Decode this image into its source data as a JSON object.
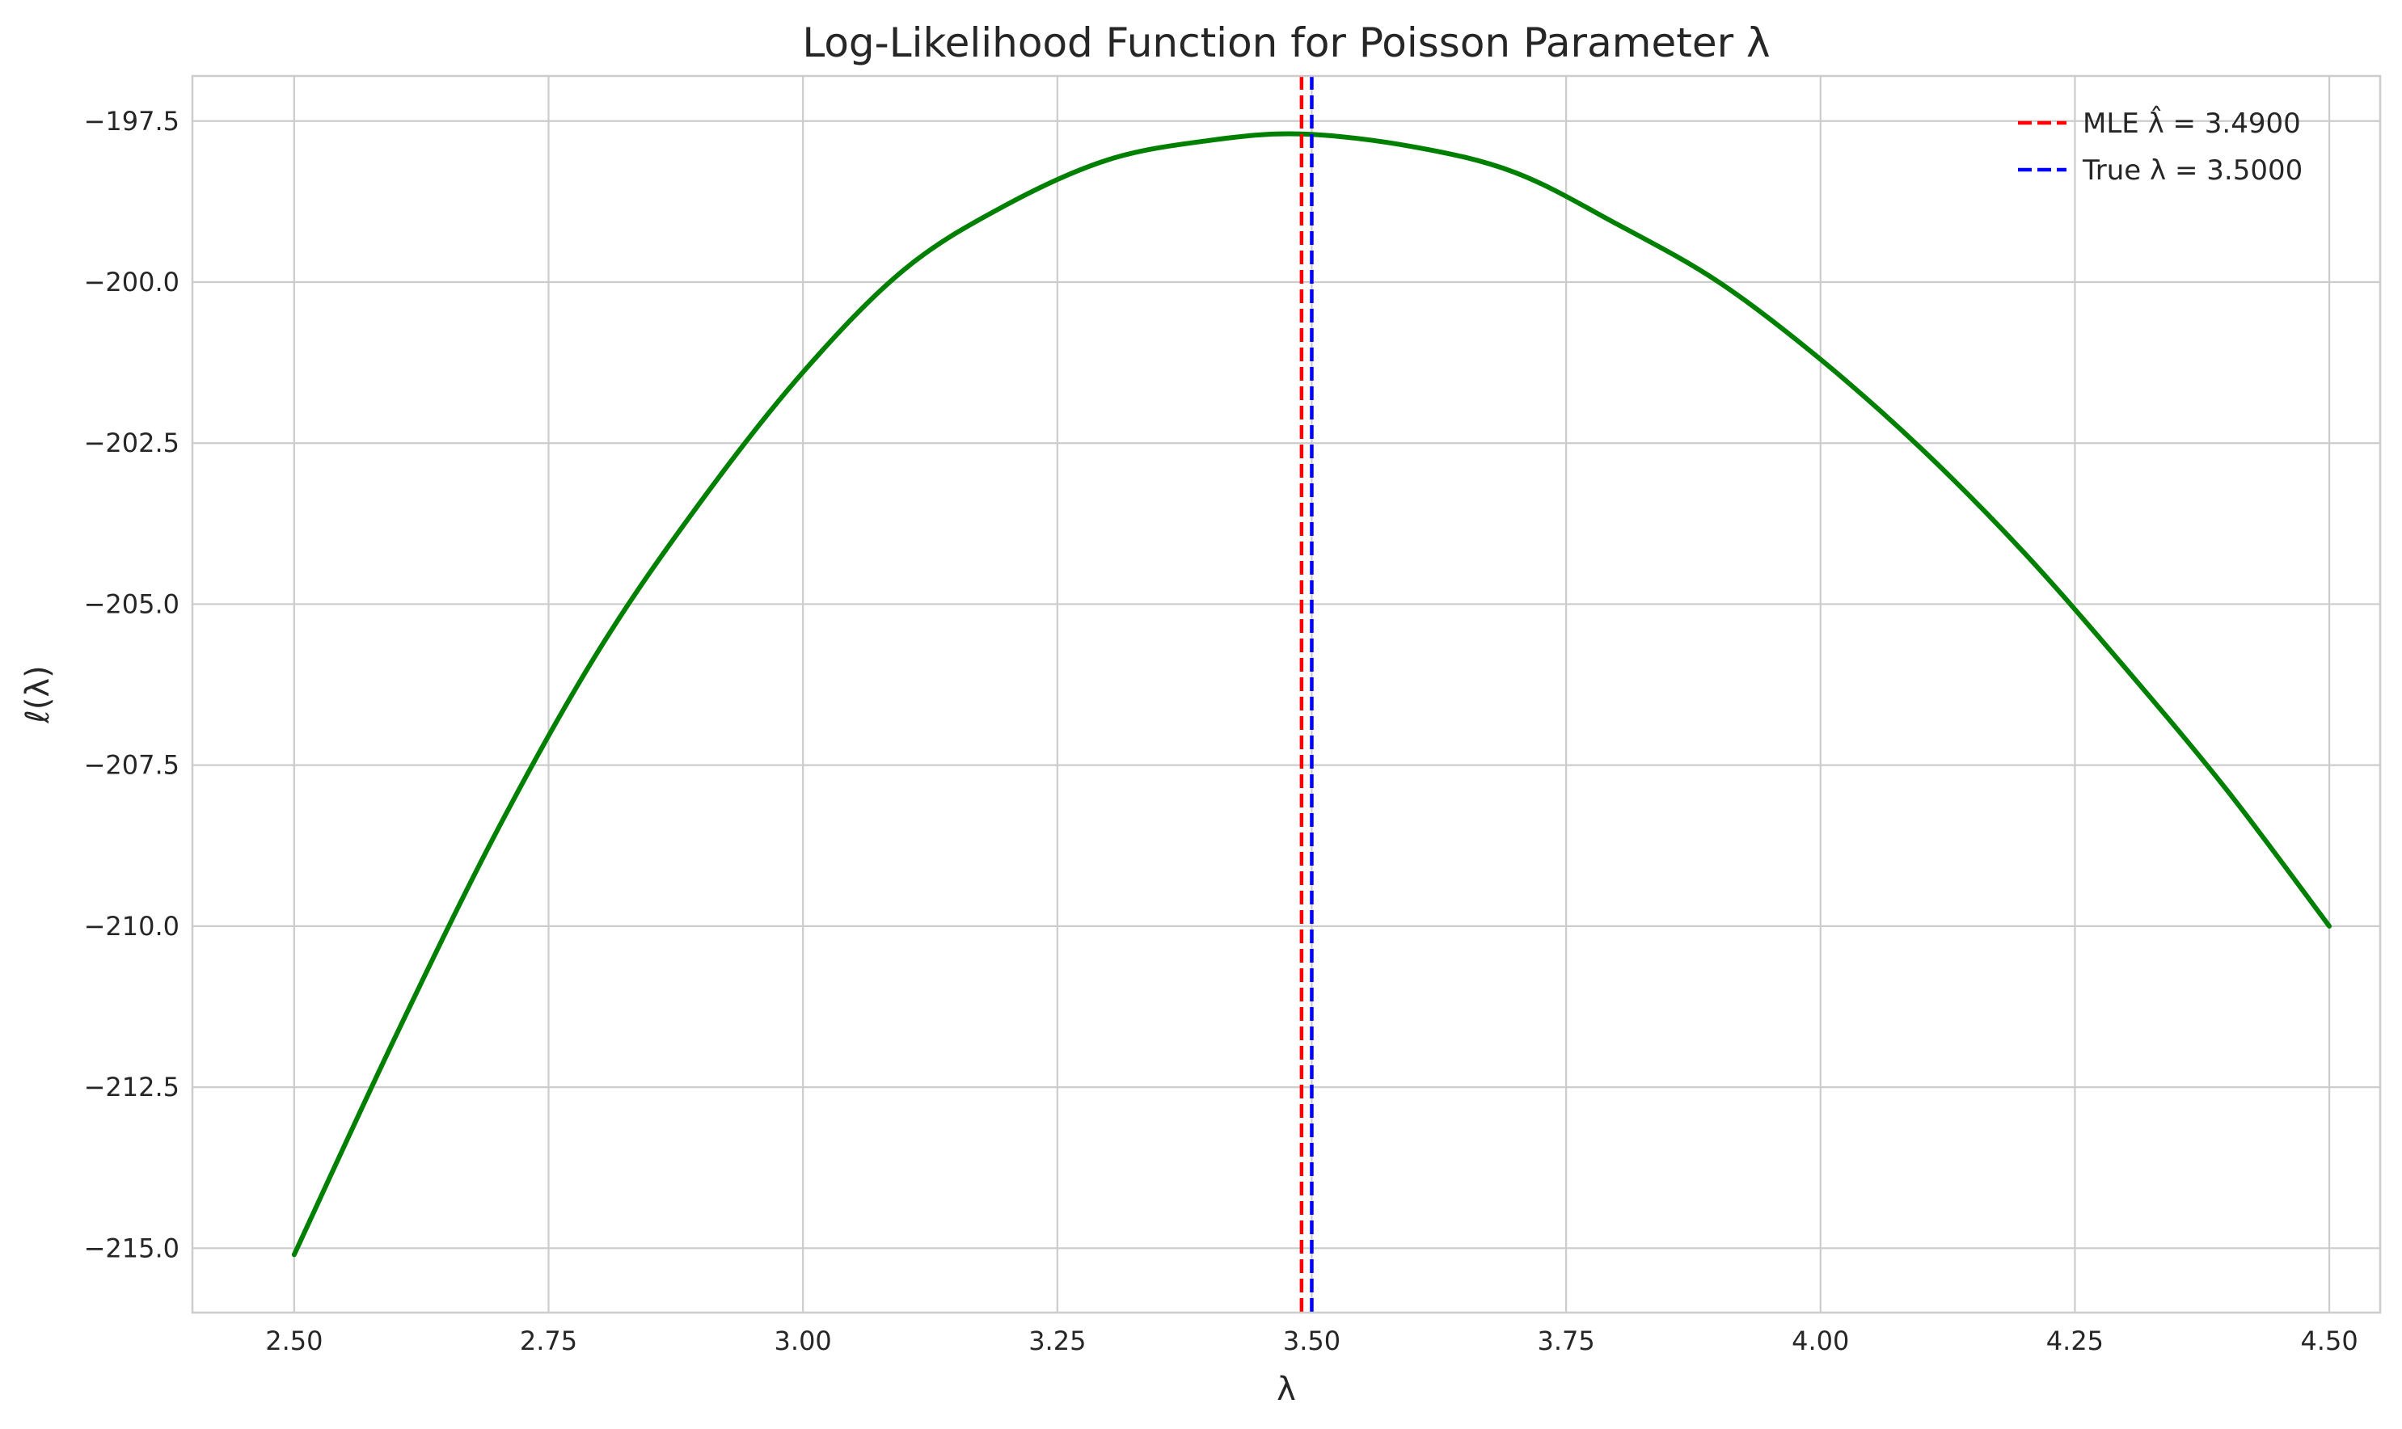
{
  "chart_data": {
    "type": "line",
    "title": "Log-Likelihood Function for Poisson Parameter λ",
    "xlabel": "λ",
    "ylabel": "ℓ(λ)",
    "xlim": [
      2.4,
      4.55
    ],
    "ylim": [
      -216.0,
      -196.8
    ],
    "grid": true,
    "legend_position": "top-right",
    "x_ticks": [
      "2.50",
      "2.75",
      "3.00",
      "3.25",
      "3.50",
      "3.75",
      "4.00",
      "4.25",
      "4.50"
    ],
    "y_ticks": [
      "−197.5",
      "−200.0",
      "−202.5",
      "−205.0",
      "−207.5",
      "−210.0",
      "−212.5",
      "−215.0"
    ],
    "series": [
      {
        "name": "",
        "color": "#008000",
        "x": [
          2.5,
          2.6,
          2.7,
          2.8,
          2.9,
          3.0,
          3.1,
          3.2,
          3.3,
          3.4,
          3.49,
          3.6,
          3.7,
          3.8,
          3.9,
          4.0,
          4.1,
          4.2,
          4.3,
          4.4,
          4.5
        ],
        "y": [
          -215.1,
          -211.7,
          -208.5,
          -205.7,
          -203.4,
          -201.4,
          -199.8,
          -198.8,
          -198.1,
          -197.8,
          -197.7,
          -197.9,
          -198.3,
          -199.1,
          -200.0,
          -201.2,
          -202.6,
          -204.2,
          -206.0,
          -207.9,
          -210.0
        ]
      }
    ],
    "vlines": [
      {
        "label": "MLE λ̂ = 3.4900",
        "x": 3.49,
        "color": "#ff0000",
        "style": "dashed"
      },
      {
        "label": "True λ = 3.5000",
        "x": 3.5,
        "color": "#0000ff",
        "style": "dashed"
      }
    ]
  }
}
